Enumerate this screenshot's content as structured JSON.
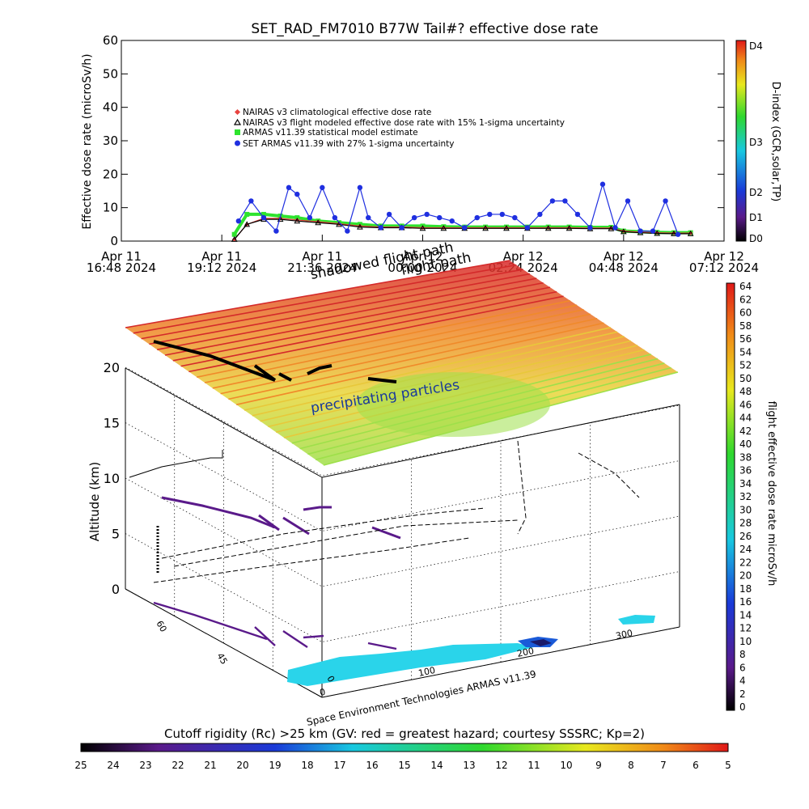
{
  "top_title": "SET_RAD_FM7010  B77W Tail#? effective dose rate",
  "footer_credit": "Space Environment Technologies ARMAS v11.39",
  "annotations": {
    "precipitating": "precipitating particles",
    "shadowed": "shadowed flight path",
    "flight_path": "flight path"
  },
  "legend": [
    {
      "label": "NAIRAS v3 climatological effective dose rate",
      "color": "#e8433f",
      "marker": "diamond"
    },
    {
      "label": "NAIRAS v3 flight modeled effective dose rate with 15% 1-sigma uncertainty",
      "color": "#000000",
      "marker": "triangle"
    },
    {
      "label": "ARMAS v11.39 statistical model estimate",
      "color": "#2ee32e",
      "marker": "square"
    },
    {
      "label": "SET ARMAS v11.39 with 27% 1-sigma uncertainty",
      "color": "#1f2fe0",
      "marker": "circle"
    }
  ],
  "colorbars": {
    "dindex": {
      "label": "D-index (GCR,solar,TP)",
      "ticks": [
        "D4",
        "D3",
        "D2",
        "D1",
        "D0"
      ]
    },
    "dose": {
      "label": "flight effective dose rate microSv/h",
      "ticks": [
        "64",
        "62",
        "60",
        "58",
        "56",
        "54",
        "52",
        "50",
        "48",
        "46",
        "44",
        "42",
        "40",
        "38",
        "36",
        "34",
        "32",
        "30",
        "28",
        "26",
        "24",
        "22",
        "20",
        "18",
        "16",
        "14",
        "12",
        "10",
        "8",
        "6",
        "4",
        "2",
        "0"
      ]
    },
    "rigidity": {
      "label": "Cutoff rigidity (Rc) >25 km (GV: red = greatest hazard; courtesy SSSRC; Kp=2)",
      "ticks": [
        "25",
        "24",
        "23",
        "22",
        "21",
        "20",
        "19",
        "18",
        "17",
        "16",
        "15",
        "14",
        "13",
        "12",
        "11",
        "10",
        "9",
        "8",
        "7",
        "6",
        "5"
      ]
    }
  },
  "chart_data": [
    {
      "type": "scatter",
      "title": "SET_RAD_FM7010  B77W Tail#? effective dose rate",
      "ylabel": "Effective dose rate (microSv/h)",
      "ylim": [
        0,
        60
      ],
      "y_ticks": [
        0,
        10,
        20,
        30,
        40,
        50,
        60
      ],
      "x_ticks": [
        {
          "line1": "Apr 11",
          "line2": "16:48 2024"
        },
        {
          "line1": "Apr 11",
          "line2": "19:12 2024"
        },
        {
          "line1": "Apr 11",
          "line2": "21:36 2024"
        },
        {
          "line1": "Apr 12",
          "line2": "00:00 2024"
        },
        {
          "line1": "Apr 12",
          "line2": "02:24 2024"
        },
        {
          "line1": "Apr 12",
          "line2": "04:48 2024"
        },
        {
          "line1": "Apr 12",
          "line2": "07:12 2024"
        }
      ],
      "xlim_hours": [
        16.8,
        31.2
      ],
      "series": [
        {
          "name": "SET ARMAS v11.39 with 27% 1-sigma uncertainty",
          "x_hours": [
            19.6,
            19.9,
            20.2,
            20.5,
            20.8,
            21.0,
            21.3,
            21.6,
            21.9,
            22.2,
            22.5,
            22.7,
            23.0,
            23.2,
            23.5,
            23.8,
            24.1,
            24.4,
            24.7,
            25.0,
            25.3,
            25.6,
            25.9,
            26.2,
            26.5,
            26.8,
            27.1,
            27.4,
            27.7,
            28.0,
            28.3,
            28.6,
            28.9,
            29.2,
            29.5,
            29.8,
            30.1
          ],
          "values": [
            6,
            12,
            7,
            3,
            16,
            14,
            7,
            16,
            7,
            3,
            16,
            7,
            4,
            8,
            4,
            7,
            8,
            7,
            6,
            4,
            7,
            8,
            8,
            7,
            4,
            8,
            12,
            12,
            8,
            4,
            17,
            4,
            12,
            3,
            3,
            12,
            2
          ]
        },
        {
          "name": "ARMAS v11.39 statistical model estimate",
          "x_hours": [
            19.5,
            19.8,
            20.2,
            20.6,
            21.0,
            21.5,
            22.0,
            22.5,
            23.0,
            23.5,
            24.0,
            24.5,
            25.0,
            25.5,
            26.0,
            26.5,
            27.0,
            27.5,
            28.0,
            28.5,
            28.8,
            29.2,
            29.6,
            30.0,
            30.4
          ],
          "values": [
            2,
            8,
            8,
            7.5,
            7,
            6,
            5.5,
            5,
            4.5,
            4.5,
            4.5,
            4.3,
            4.2,
            4.2,
            4.2,
            4.2,
            4.2,
            4.2,
            4.1,
            4.1,
            3,
            2.8,
            2.6,
            2.5,
            2.5
          ]
        },
        {
          "name": "NAIRAS v3 flight modeled effective dose rate with 15% 1-sigma uncertainty",
          "x_hours": [
            19.5,
            19.8,
            20.2,
            20.6,
            21.0,
            21.5,
            22.0,
            22.5,
            23.0,
            23.5,
            24.0,
            24.5,
            25.0,
            25.5,
            26.0,
            26.5,
            27.0,
            27.5,
            28.0,
            28.5,
            28.8,
            29.2,
            29.6,
            30.0,
            30.4
          ],
          "values": [
            0.5,
            5,
            6.5,
            6.5,
            6,
            5.5,
            5,
            4.2,
            4,
            4,
            3.8,
            3.8,
            3.8,
            3.8,
            3.8,
            3.8,
            3.8,
            3.8,
            3.7,
            3.7,
            2.8,
            2.5,
            2.3,
            2.2,
            2.2
          ]
        },
        {
          "name": "NAIRAS v3 climatological effective dose rate",
          "x_hours": [
            19.5,
            19.8,
            20.2,
            20.6,
            21.0,
            21.5,
            22.0,
            22.5,
            23.0,
            23.5,
            24.0,
            24.5,
            25.0,
            25.5,
            26.0,
            26.5,
            27.0,
            27.5,
            28.0,
            28.5,
            28.8,
            29.2,
            29.6,
            30.0,
            30.4
          ],
          "values": [
            0.5,
            5,
            6.8,
            6.8,
            6.3,
            5.8,
            5.2,
            4.5,
            4.2,
            4.2,
            4,
            4,
            4,
            4,
            4,
            4,
            4,
            4,
            3.9,
            3.9,
            3,
            2.7,
            2.5,
            2.4,
            2.4
          ]
        }
      ]
    },
    {
      "type": "heatmap",
      "zlabel": "Altitude (km)",
      "z_ticks": [
        0,
        5,
        10,
        15,
        20
      ],
      "lat_ticks": [
        0,
        45,
        60
      ],
      "lon_ticks": [
        0,
        100,
        200,
        300
      ],
      "note": "3D dose-rate layer with flight path and cutoff-rigidity map"
    }
  ]
}
